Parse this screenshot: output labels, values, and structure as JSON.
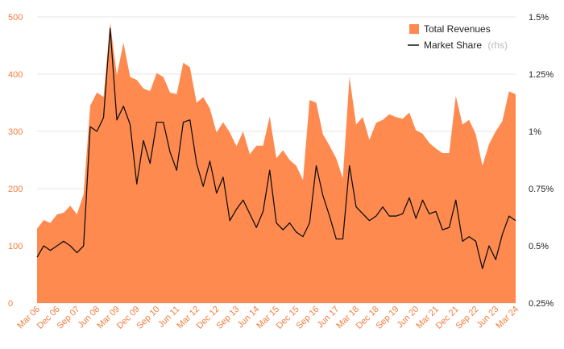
{
  "chart_data": {
    "type": "area",
    "x_tick_labels": [
      "Mar 06",
      "Dec 06",
      "Sep 07",
      "Jun 08",
      "Mar 09",
      "Dec 09",
      "Sep 10",
      "Jun 11",
      "Mar 12",
      "Dec 12",
      "Sep 13",
      "Jun 14",
      "Mar 15",
      "Dec 15",
      "Sep 16",
      "Jun 17",
      "Mar 18",
      "Dec 18",
      "Sep 19",
      "Jun 20",
      "Mar 21",
      "Dec 21",
      "Sep 22",
      "Jun 23",
      "Mar 24"
    ],
    "left_axis": {
      "min": 0,
      "max": 500,
      "ticks": [
        0,
        100,
        200,
        300,
        400,
        500
      ],
      "tick_labels": [
        "0",
        "100",
        "200",
        "300",
        "400",
        "500"
      ]
    },
    "right_axis": {
      "min": 0.25,
      "max": 1.5,
      "ticks": [
        0.25,
        0.5,
        0.75,
        1.0,
        1.25,
        1.5
      ],
      "tick_labels": [
        "0.25%",
        "0.5%",
        "0.75%",
        "1%",
        "1.25%",
        "1.5%"
      ]
    },
    "grid": true,
    "legend_position": "top-right",
    "series": [
      {
        "name": "Total Revenues",
        "type": "area",
        "axis": "left",
        "color": "#ff8a50",
        "values": [
          130,
          145,
          140,
          155,
          158,
          170,
          155,
          190,
          345,
          368,
          360,
          490,
          398,
          455,
          395,
          390,
          375,
          370,
          402,
          395,
          368,
          365,
          420,
          412,
          350,
          360,
          340,
          298,
          316,
          298,
          274,
          300,
          260,
          275,
          275,
          326,
          253,
          267,
          250,
          240,
          215,
          355,
          350,
          295,
          275,
          253,
          218,
          395,
          312,
          325,
          285,
          315,
          320,
          330,
          325,
          322,
          333,
          302,
          296,
          280,
          270,
          262,
          262,
          362,
          312,
          320,
          295,
          240,
          278,
          300,
          318,
          370,
          365
        ]
      },
      {
        "name": "Market Share",
        "axis_note": "(rhs)",
        "type": "line",
        "axis": "right",
        "color": "#111111",
        "values": [
          0.45,
          0.5,
          0.48,
          0.5,
          0.52,
          0.5,
          0.47,
          0.5,
          1.02,
          1.0,
          1.06,
          1.45,
          1.05,
          1.11,
          1.03,
          0.77,
          0.96,
          0.86,
          1.04,
          1.04,
          0.91,
          0.83,
          1.04,
          1.05,
          0.86,
          0.76,
          0.87,
          0.73,
          0.8,
          0.61,
          0.66,
          0.7,
          0.64,
          0.58,
          0.65,
          0.83,
          0.6,
          0.57,
          0.6,
          0.56,
          0.54,
          0.6,
          0.85,
          0.72,
          0.63,
          0.53,
          0.53,
          0.85,
          0.67,
          0.64,
          0.61,
          0.63,
          0.67,
          0.63,
          0.63,
          0.64,
          0.71,
          0.62,
          0.7,
          0.64,
          0.65,
          0.57,
          0.58,
          0.7,
          0.52,
          0.54,
          0.52,
          0.4,
          0.5,
          0.44,
          0.55,
          0.63,
          0.61
        ]
      }
    ]
  }
}
